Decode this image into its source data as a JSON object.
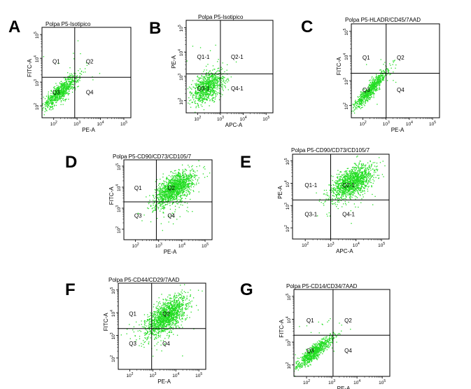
{
  "chart_data": [
    {
      "id": "A",
      "type": "scatter",
      "panel_letter": "A",
      "title": "Polpa P5-Isotipico",
      "xlabel": "PE-A",
      "ylabel": "FITC-A",
      "xlim": [
        1.5,
        5.3
      ],
      "ylim": [
        1.5,
        5.3
      ],
      "x_ticks": [
        2,
        3,
        4,
        5
      ],
      "y_ticks": [
        2,
        3,
        4,
        5
      ],
      "gate": {
        "x": 2.9,
        "y": 3.2
      },
      "quadrants": {
        "ul": "Q1",
        "ur": "Q2",
        "ll": "Q3",
        "lr": "Q4"
      },
      "clusters": [
        {
          "cx": 2.3,
          "cy": 2.6,
          "sx": 0.38,
          "sy": 0.35,
          "n": 800,
          "corr": 0.85
        },
        {
          "cx": 2.7,
          "cy": 3.4,
          "sx": 0.6,
          "sy": 0.5,
          "n": 20,
          "corr": 0.0
        }
      ]
    },
    {
      "id": "B",
      "type": "scatter",
      "panel_letter": "B",
      "title": "Polpa P5-Isotipico",
      "xlabel": "APC-A",
      "ylabel": "PE-A",
      "xlim": [
        1.5,
        5.3
      ],
      "ylim": [
        1.5,
        5.3
      ],
      "x_ticks": [
        2,
        3,
        4,
        5
      ],
      "y_ticks": [
        2,
        3,
        4,
        5
      ],
      "gate": {
        "x": 3.0,
        "y": 3.1
      },
      "quadrants": {
        "ul": "Q1-1",
        "ur": "Q2-1",
        "ll": "Q3-1",
        "lr": "Q4-1"
      },
      "clusters": [
        {
          "cx": 2.45,
          "cy": 2.55,
          "sx": 0.35,
          "sy": 0.33,
          "n": 850,
          "corr": 0.45
        },
        {
          "cx": 2.9,
          "cy": 3.2,
          "sx": 0.6,
          "sy": 0.5,
          "n": 15,
          "corr": 0.0
        }
      ]
    },
    {
      "id": "C",
      "type": "scatter",
      "panel_letter": "C",
      "title": "Polpa P5-HLADR/CD45/7AAD",
      "xlabel": "PE-A",
      "ylabel": "FITC-A",
      "xlim": [
        1.5,
        5.3
      ],
      "ylim": [
        1.5,
        5.3
      ],
      "x_ticks": [
        2,
        3,
        4,
        5
      ],
      "y_ticks": [
        2,
        3,
        4,
        5
      ],
      "gate": {
        "x": 3.0,
        "y": 3.3
      },
      "quadrants": {
        "ul": "Q1",
        "ur": "Q2",
        "ll": "Q3",
        "lr": "Q4"
      },
      "clusters": [
        {
          "cx": 2.3,
          "cy": 2.6,
          "sx": 0.38,
          "sy": 0.4,
          "n": 750,
          "corr": 0.92
        },
        {
          "cx": 2.8,
          "cy": 3.5,
          "sx": 0.5,
          "sy": 0.5,
          "n": 15,
          "corr": 0.0
        }
      ]
    },
    {
      "id": "D",
      "type": "scatter",
      "panel_letter": "D",
      "title": "Polpa P5-CD90/CD73/CD105/7",
      "xlabel": "PE-A",
      "ylabel": "FITC-A",
      "xlim": [
        1.5,
        5.3
      ],
      "ylim": [
        1.5,
        5.3
      ],
      "x_ticks": [
        2,
        3,
        4,
        5
      ],
      "y_ticks": [
        2,
        3,
        4,
        5
      ],
      "gate": {
        "x": 2.9,
        "y": 3.3
      },
      "quadrants": {
        "ul": "Q1",
        "ur": "Q2",
        "ll": "Q3",
        "lr": "Q4"
      },
      "clusters": [
        {
          "cx": 3.7,
          "cy": 3.95,
          "sx": 0.42,
          "sy": 0.4,
          "n": 1400,
          "corr": 0.6
        },
        {
          "cx": 3.3,
          "cy": 3.1,
          "sx": 0.7,
          "sy": 0.6,
          "n": 60,
          "corr": 0.2
        }
      ]
    },
    {
      "id": "E",
      "type": "scatter",
      "panel_letter": "E",
      "title": "Polpa P5-CD90/CD73/CD105/7",
      "xlabel": "APC-A",
      "ylabel": "PE-A",
      "xlim": [
        1.5,
        5.3
      ],
      "ylim": [
        1.5,
        5.3
      ],
      "x_ticks": [
        2,
        3,
        4,
        5
      ],
      "y_ticks": [
        2,
        3,
        4,
        5
      ],
      "gate": {
        "x": 3.0,
        "y": 3.25
      },
      "quadrants": {
        "ul": "Q1-1",
        "ur": "Q2-1",
        "ll": "Q3-1",
        "lr": "Q4-1"
      },
      "clusters": [
        {
          "cx": 3.85,
          "cy": 4.05,
          "sx": 0.42,
          "sy": 0.38,
          "n": 1300,
          "corr": 0.55
        },
        {
          "cx": 3.5,
          "cy": 3.3,
          "sx": 0.7,
          "sy": 0.6,
          "n": 40,
          "corr": 0.2
        }
      ]
    },
    {
      "id": "F",
      "type": "scatter",
      "panel_letter": "F",
      "title": "Polpa P5-CD44/CD29/7AAD",
      "xlabel": "PE-A",
      "ylabel": "FITC-A",
      "xlim": [
        1.5,
        5.3
      ],
      "ylim": [
        1.5,
        5.3
      ],
      "x_ticks": [
        2,
        3,
        4,
        5
      ],
      "y_ticks": [
        2,
        3,
        4,
        5
      ],
      "gate": {
        "x": 2.95,
        "y": 3.3
      },
      "quadrants": {
        "ul": "Q1",
        "ur": "Q2",
        "ll": "Q3",
        "lr": "Q4"
      },
      "clusters": [
        {
          "cx": 3.6,
          "cy": 3.85,
          "sx": 0.45,
          "sy": 0.42,
          "n": 1400,
          "corr": 0.6
        },
        {
          "cx": 3.1,
          "cy": 3.0,
          "sx": 0.7,
          "sy": 0.6,
          "n": 60,
          "corr": 0.2
        }
      ]
    },
    {
      "id": "G",
      "type": "scatter",
      "panel_letter": "G",
      "title": "Polpa P5-CD14/CD34/7AAD",
      "xlabel": "PE-A",
      "ylabel": "FITC-A",
      "xlim": [
        1.5,
        5.3
      ],
      "ylim": [
        1.5,
        5.3
      ],
      "x_ticks": [
        2,
        3,
        4,
        5
      ],
      "y_ticks": [
        2,
        3,
        4,
        5
      ],
      "gate": {
        "x": 3.05,
        "y": 3.3
      },
      "quadrants": {
        "ul": "Q1",
        "ur": "Q2",
        "ll": "Q3",
        "lr": "Q4"
      },
      "clusters": [
        {
          "cx": 2.3,
          "cy": 2.55,
          "sx": 0.38,
          "sy": 0.36,
          "n": 800,
          "corr": 0.9
        },
        {
          "cx": 2.7,
          "cy": 3.4,
          "sx": 0.5,
          "sy": 0.5,
          "n": 15,
          "corr": 0.0
        }
      ]
    }
  ],
  "colors": {
    "points": "#22dd22",
    "frame": "#000000",
    "gate": "#000000"
  }
}
